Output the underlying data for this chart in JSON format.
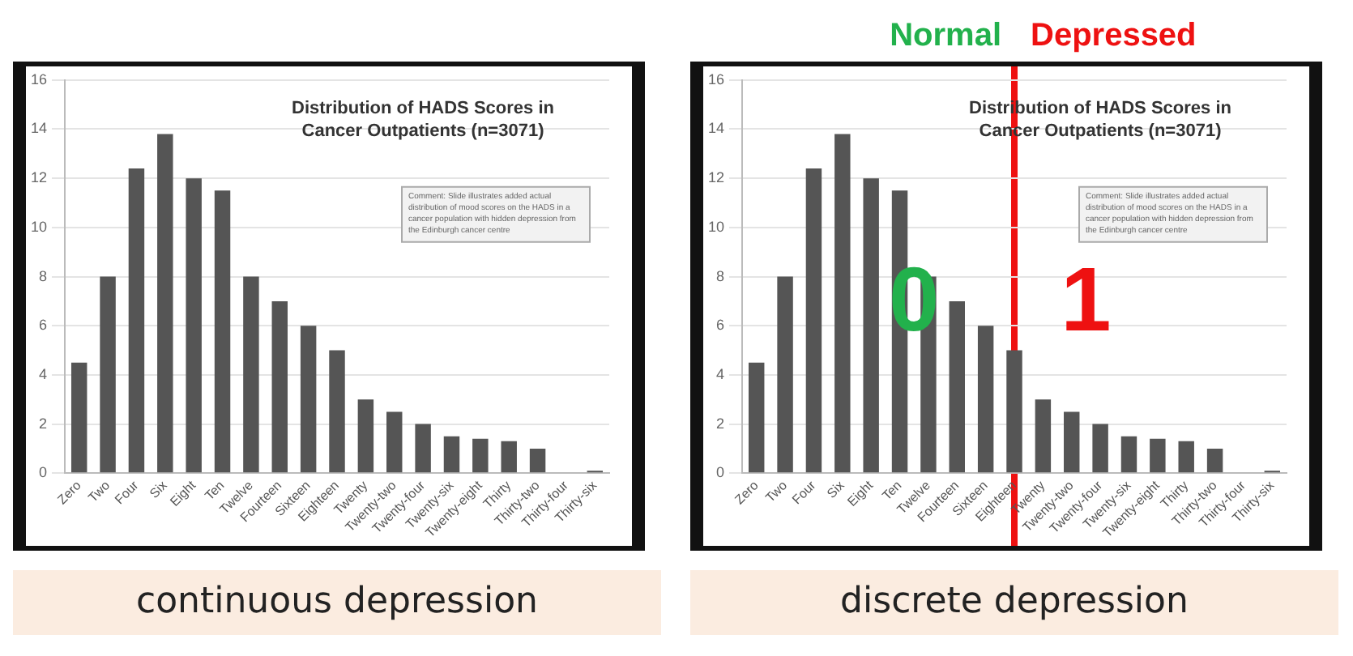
{
  "chart_data": [
    {
      "type": "bar",
      "title": "Distribution of HADS Scores in Cancer Outpatients (n=3071)",
      "subtitle": "continuous depression",
      "categories": [
        "Zero",
        "Two",
        "Four",
        "Six",
        "Eight",
        "Ten",
        "Twelve",
        "Fourteen",
        "Sixteen",
        "Eighteen",
        "Twenty",
        "Twenty-two",
        "Twenty-four",
        "Twenty-six",
        "Twenty-eight",
        "Thirty",
        "Thirty-two",
        "Thirty-four",
        "Thirty-six"
      ],
      "values": [
        4.5,
        8,
        12.4,
        13.8,
        12,
        11.5,
        8,
        7,
        6,
        5,
        3,
        2.5,
        2,
        1.5,
        1.4,
        1.3,
        1,
        0,
        0.1
      ],
      "color": "#555555",
      "ylim": [
        0,
        16
      ],
      "yticks": [
        0,
        2,
        4,
        6,
        8,
        10,
        12,
        14,
        16
      ],
      "grid": "y",
      "annotations": [
        "Comment: Slide illustrates added actual distribution of mood scores on the HADS in a cancer population with hidden depression from the Edinburgh cancer centre"
      ]
    },
    {
      "type": "bar",
      "title": "Distribution of HADS Scores in Cancer Outpatients (n=3071)",
      "subtitle": "discrete depression",
      "categories": [
        "Zero",
        "Two",
        "Four",
        "Six",
        "Eight",
        "Ten",
        "Twelve",
        "Fourteen",
        "Sixteen",
        "Eighteen",
        "Twenty",
        "Twenty-two",
        "Twenty-four",
        "Twenty-six",
        "Twenty-eight",
        "Thirty",
        "Thirty-two",
        "Thirty-four",
        "Thirty-six"
      ],
      "values": [
        4.5,
        8,
        12.4,
        13.8,
        12,
        11.5,
        8,
        7,
        6,
        5,
        3,
        2.5,
        2,
        1.5,
        1.4,
        1.3,
        1,
        0,
        0.1
      ],
      "color": "#555555",
      "ylim": [
        0,
        16
      ],
      "yticks": [
        0,
        2,
        4,
        6,
        8,
        10,
        12,
        14,
        16
      ],
      "grid": "y",
      "ref_lines": [
        {
          "axis": "x",
          "value": "Eighteen",
          "color": "#ee1111"
        }
      ],
      "annotations": [
        "Comment: Slide illustrates added actual distribution of mood scores on the HADS in a cancer population with hidden depression from the Edinburgh cancer centre",
        "Normal",
        "Depressed",
        "0",
        "1"
      ]
    }
  ]
}
